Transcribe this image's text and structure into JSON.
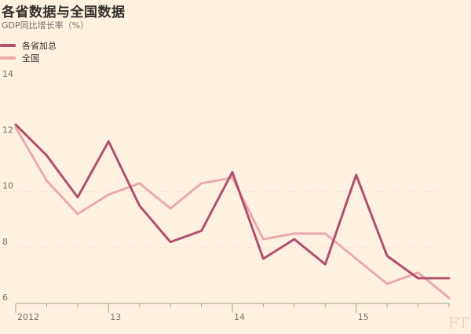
{
  "chart_data": {
    "type": "line",
    "title": "各省数据与全国数据",
    "subtitle": "GDP同比增长率（%）",
    "x": [
      0,
      1,
      2,
      3,
      4,
      5,
      6,
      7,
      8,
      9,
      10,
      11,
      12,
      13,
      14
    ],
    "x_ticks": [
      {
        "x": 0,
        "label": "2012"
      },
      {
        "x": 3,
        "label": "13"
      },
      {
        "x": 7,
        "label": "14"
      },
      {
        "x": 11,
        "label": "15"
      }
    ],
    "ylim": [
      6,
      14
    ],
    "yticks": [
      6,
      8,
      10,
      12,
      14
    ],
    "grid": true,
    "legend_placement": "top-left",
    "series": [
      {
        "name": "各省加总",
        "color": "#b0506f",
        "values": [
          12.4,
          11.3,
          9.8,
          11.8,
          9.5,
          8.2,
          8.6,
          10.7,
          7.6,
          8.3,
          7.4,
          10.6,
          7.7,
          6.9,
          6.9
        ]
      },
      {
        "name": "全国",
        "color": "#eba9ac",
        "values": [
          12.3,
          10.4,
          9.2,
          9.9,
          10.3,
          9.4,
          10.3,
          10.5,
          8.3,
          8.5,
          8.5,
          7.6,
          6.7,
          7.1,
          6.2
        ]
      }
    ]
  },
  "watermark": "FT"
}
